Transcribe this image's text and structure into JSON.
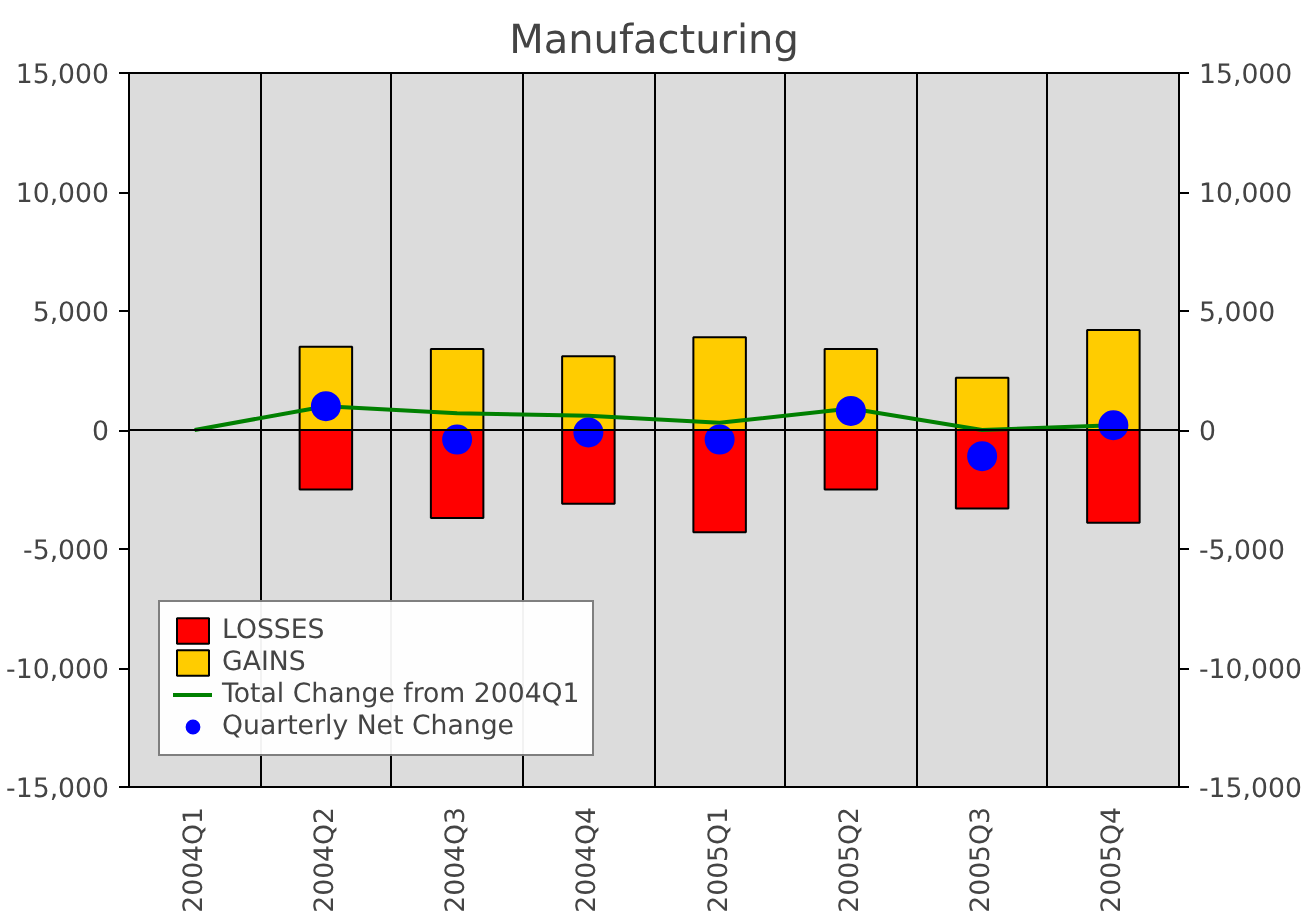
{
  "chart_data": {
    "type": "bar",
    "stacked": true,
    "title": "Manufacturing",
    "categories": [
      "2004Q1",
      "2004Q2",
      "2004Q3",
      "2004Q4",
      "2005Q1",
      "2005Q2",
      "2005Q3",
      "2005Q4"
    ],
    "series": [
      {
        "name": "LOSSES",
        "color": "#ff0000",
        "values": [
          null,
          -2500,
          -3700,
          -3100,
          -4300,
          -2500,
          -3300,
          -3900
        ]
      },
      {
        "name": "GAINS",
        "color": "#ffcc00",
        "values": [
          null,
          3500,
          3400,
          3100,
          3900,
          3400,
          2200,
          4200
        ]
      },
      {
        "name": "Total Change from 2004Q1",
        "type": "line",
        "marker": "none",
        "color": "#008000",
        "values": [
          0,
          1000,
          700,
          600,
          300,
          900,
          0,
          200
        ]
      },
      {
        "name": "Quarterly Net Change",
        "type": "scatter",
        "marker": "circle",
        "color": "#0000ff",
        "values": [
          null,
          1000,
          -400,
          -100,
          -400,
          800,
          -1100,
          200
        ]
      }
    ],
    "ylim": [
      -15000,
      15000
    ],
    "yticks": [
      {
        "value": -15000,
        "label": "-15,000"
      },
      {
        "value": -10000,
        "label": "-10,000"
      },
      {
        "value": -5000,
        "label": "-5,000"
      },
      0,
      {
        "value": 5000,
        "label": "5,000"
      },
      {
        "value": 10000,
        "label": "10,000"
      },
      {
        "value": 15000,
        "label": "15,000"
      }
    ],
    "y2lim": [
      -15000,
      15000
    ],
    "y2ticks": [
      {
        "value": -15000,
        "label": "-15,000"
      },
      {
        "value": -10000,
        "label": "-10,000"
      },
      {
        "value": -5000,
        "label": "-5,000"
      },
      0,
      {
        "value": 5000,
        "label": "5,000"
      },
      {
        "value": 10000,
        "label": "10,000"
      },
      {
        "value": 15000,
        "label": "15,000"
      }
    ],
    "ref_lines": [
      {
        "axis": "y",
        "value": 0,
        "color": "#000000"
      }
    ],
    "grid": "x",
    "legend": "bottom left"
  }
}
